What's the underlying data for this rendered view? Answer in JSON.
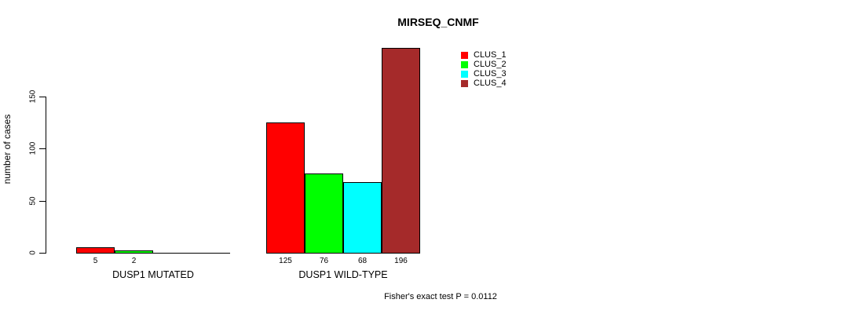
{
  "chart_data": {
    "type": "bar",
    "title": "MIRSEQ_CNMF",
    "ylabel": "number of cases",
    "xlabel": "",
    "ylim": [
      0,
      150
    ],
    "yticks": [
      0,
      50,
      100,
      150
    ],
    "grid": false,
    "legend_position": "top-right",
    "categories": [
      "DUSP1 MUTATED",
      "DUSP1 WILD-TYPE"
    ],
    "series": [
      {
        "name": "CLUS_1",
        "color": "#FF0000",
        "values": [
          5,
          125
        ]
      },
      {
        "name": "CLUS_2",
        "color": "#00FF00",
        "values": [
          2,
          76
        ]
      },
      {
        "name": "CLUS_3",
        "color": "#00FFFF",
        "values": [
          0,
          68
        ]
      },
      {
        "name": "CLUS_4",
        "color": "#A52A2A",
        "values": [
          0,
          196
        ]
      }
    ],
    "value_labels": [
      [
        "5",
        "2",
        "",
        ""
      ],
      [
        "125",
        "76",
        "68",
        "196"
      ]
    ],
    "annotation": "Fisher's exact test P = 0.0112"
  }
}
